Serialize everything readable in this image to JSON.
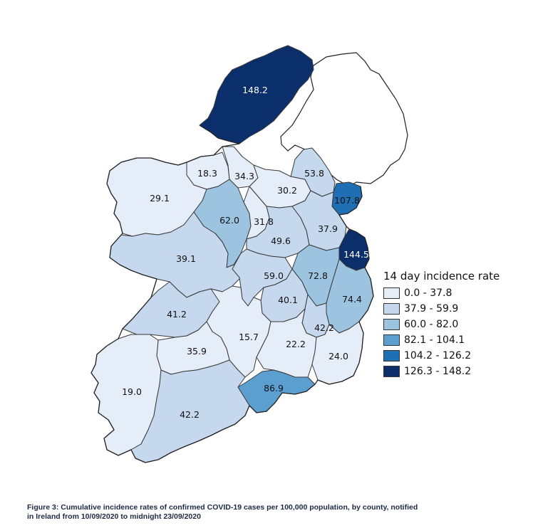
{
  "map": {
    "scale_colors": [
      "#e4edf8",
      "#c6d8ee",
      "#9cc3df",
      "#5a9fcf",
      "#1e6fb3",
      "#0a2f6b"
    ],
    "counties": [
      {
        "name": "donegal",
        "value": "148.2",
        "class": 5
      },
      {
        "name": "sligo",
        "value": "18.3",
        "class": 0
      },
      {
        "name": "leitrim",
        "value": "34.3",
        "class": 0
      },
      {
        "name": "cavan",
        "value": "30.2",
        "class": 0
      },
      {
        "name": "monaghan",
        "value": "53.8",
        "class": 1
      },
      {
        "name": "louth",
        "value": "107.8",
        "class": 4
      },
      {
        "name": "mayo",
        "value": "29.1",
        "class": 0
      },
      {
        "name": "roscommon",
        "value": "62.0",
        "class": 2
      },
      {
        "name": "longford",
        "value": "31.8",
        "class": 0
      },
      {
        "name": "westmeath",
        "value": "49.6",
        "class": 1
      },
      {
        "name": "meath",
        "value": "37.9",
        "class": 1
      },
      {
        "name": "dublin",
        "value": "144.5",
        "class": 5
      },
      {
        "name": "galway",
        "value": "39.1",
        "class": 1
      },
      {
        "name": "offaly",
        "value": "59.0",
        "class": 1
      },
      {
        "name": "kildare",
        "value": "72.8",
        "class": 2
      },
      {
        "name": "wicklow",
        "value": "74.4",
        "class": 2
      },
      {
        "name": "laois",
        "value": "40.1",
        "class": 1
      },
      {
        "name": "clare",
        "value": "41.2",
        "class": 1
      },
      {
        "name": "tipperary",
        "value": "15.7",
        "class": 0
      },
      {
        "name": "carlow",
        "value": "42.2",
        "class": 1
      },
      {
        "name": "kilkenny",
        "value": "22.2",
        "class": 0
      },
      {
        "name": "wexford",
        "value": "24.0",
        "class": 0
      },
      {
        "name": "limerick",
        "value": "35.9",
        "class": 0
      },
      {
        "name": "waterford",
        "value": "86.9",
        "class": 3
      },
      {
        "name": "kerry",
        "value": "19.0",
        "class": 0
      },
      {
        "name": "cork",
        "value": "42.2",
        "class": 1
      }
    ]
  },
  "legend": {
    "title": "14 day incidence rate",
    "items": [
      {
        "label": "0.0 - 37.8",
        "color": "#e4edf8"
      },
      {
        "label": "37.9 - 59.9",
        "color": "#c6d8ee"
      },
      {
        "label": "60.0 - 82.0",
        "color": "#9cc3df"
      },
      {
        "label": "82.1 - 104.1",
        "color": "#5a9fcf"
      },
      {
        "label": "104.2 - 126.2",
        "color": "#1e6fb3"
      },
      {
        "label": "126.3 - 148.2",
        "color": "#0a2f6b"
      }
    ]
  },
  "caption": {
    "line1": "Figure 3: Cumulative incidence rates of confirmed COVID-19 cases per 100,000 population, by county, notified",
    "line2": "in Ireland from 10/09/2020 to midnight 23/09/2020"
  }
}
